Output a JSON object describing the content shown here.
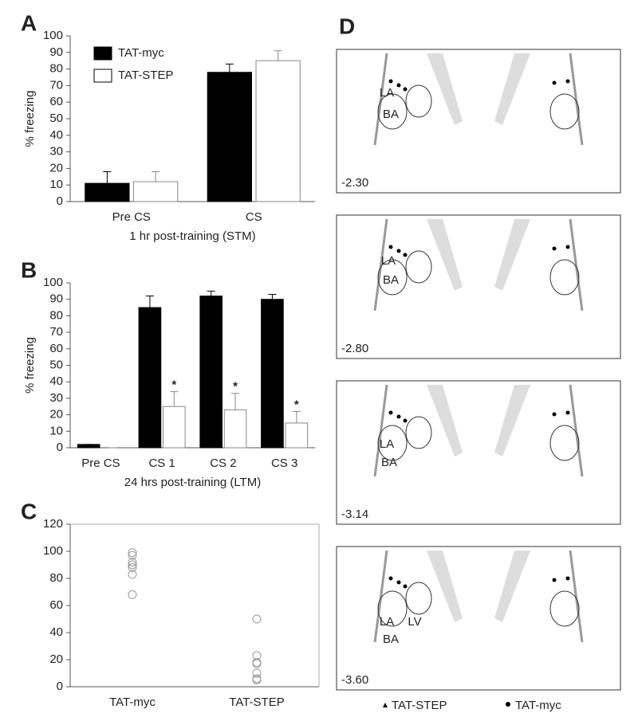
{
  "chart_data": [
    {
      "type": "bar",
      "panel": "A",
      "ylabel": "% freezing",
      "xlabel": "1 hr post-training (STM)",
      "categories": [
        "Pre CS",
        "CS"
      ],
      "series": [
        {
          "name": "TAT-myc",
          "color": "#000000",
          "values": [
            11,
            78
          ],
          "errors": [
            7,
            5
          ]
        },
        {
          "name": "TAT-STEP",
          "color": "#ffffff",
          "values": [
            12,
            85
          ],
          "errors": [
            6,
            6
          ]
        }
      ],
      "ylim": [
        0,
        100
      ],
      "yticks": [
        0,
        10,
        20,
        30,
        40,
        50,
        60,
        70,
        80,
        90,
        100
      ],
      "legend": "upper left"
    },
    {
      "type": "bar",
      "panel": "B",
      "ylabel": "% freezing",
      "xlabel": "24 hrs post-training (LTM)",
      "categories": [
        "Pre CS",
        "CS 1",
        "CS 2",
        "CS 3"
      ],
      "series": [
        {
          "name": "TAT-myc",
          "color": "#000000",
          "values": [
            2,
            85,
            92,
            90
          ],
          "errors": [
            0,
            7,
            3,
            3
          ]
        },
        {
          "name": "TAT-STEP",
          "color": "#ffffff",
          "values": [
            0,
            25,
            23,
            15
          ],
          "errors": [
            0,
            9,
            10,
            7
          ],
          "significance": [
            null,
            "*",
            "*",
            "*"
          ]
        }
      ],
      "ylim": [
        0,
        100
      ],
      "yticks": [
        0,
        10,
        20,
        30,
        40,
        50,
        60,
        70,
        80,
        90,
        100
      ]
    },
    {
      "type": "scatter",
      "panel": "C",
      "categories": [
        "TAT-myc",
        "TAT-STEP"
      ],
      "series": [
        {
          "color": "#999999",
          "values": [
            99,
            97,
            92,
            90,
            88,
            83,
            68
          ]
        },
        {
          "color": "#999999",
          "values": [
            50,
            23,
            18,
            17,
            10,
            6,
            5
          ]
        }
      ],
      "ylim": [
        0,
        120
      ],
      "yticks": [
        0,
        20,
        40,
        60,
        80,
        100,
        120
      ]
    }
  ],
  "atlas": {
    "panel": "D",
    "sections": [
      {
        "label": "-2.30",
        "regions": [
          "LA",
          "BA"
        ]
      },
      {
        "label": "-2.80",
        "regions": [
          "LA",
          "BA"
        ]
      },
      {
        "label": "-3.14",
        "regions": [
          "LA",
          "BA"
        ]
      },
      {
        "label": "-3.60",
        "regions": [
          "LA",
          "LV",
          "BA"
        ]
      }
    ],
    "legend": [
      "TAT-STEP",
      "TAT-myc"
    ]
  }
}
